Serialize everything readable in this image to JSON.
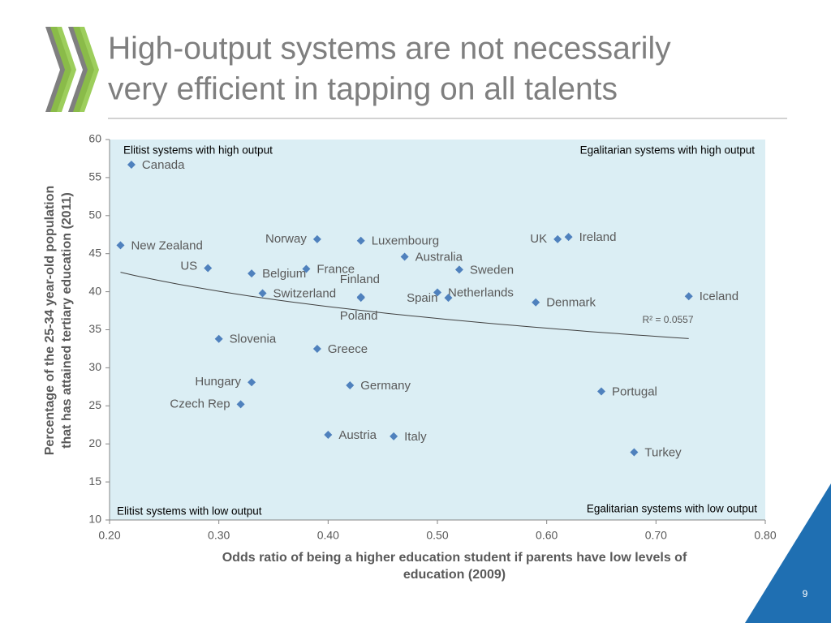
{
  "slide": {
    "title_lines": [
      "High-output systems are not necessarily",
      "very efficient in tapping on all talents"
    ],
    "page_number": "9"
  },
  "chart_data": {
    "type": "scatter",
    "x_label": "Odds ratio of being a higher education student if parents have low levels of education (2009)",
    "y_label_lines": [
      "Percentage of the 25-34 year-old population",
      "that has attained tertiary education (2011)"
    ],
    "annotations": [
      "Elitist systems with high output",
      "Egalitarian systems with high output",
      "Elitist systems with low output",
      "Egalitarian systems with low output"
    ],
    "trendline_label": "R² = 0.0557",
    "color": "#4f81bd",
    "trendline": "log",
    "labels": [
      "Canada",
      "New Zealand",
      "US",
      "Belgium",
      "Switzerland",
      "France",
      "Norway",
      "Luxembourg",
      "Finland",
      "Poland",
      "Australia",
      "Sweden",
      "Netherlands",
      "Spain",
      "Denmark",
      "UK",
      "Ireland",
      "Iceland",
      "Slovenia",
      "Greece",
      "Hungary",
      "Germany",
      "Czech Rep",
      "Portugal",
      "Austria",
      "Italy",
      "Turkey"
    ],
    "x": [
      0.22,
      0.21,
      0.29,
      0.33,
      0.34,
      0.38,
      0.39,
      0.43,
      0.43,
      0.43,
      0.47,
      0.52,
      0.5,
      0.51,
      0.59,
      0.61,
      0.62,
      0.73,
      0.3,
      0.39,
      0.33,
      0.42,
      0.32,
      0.65,
      0.4,
      0.46,
      0.68
    ],
    "y": [
      56.7,
      46.1,
      43.1,
      42.4,
      39.8,
      43.0,
      46.9,
      46.7,
      39.3,
      39.2,
      44.6,
      42.9,
      39.9,
      39.2,
      38.6,
      46.9,
      47.2,
      39.4,
      33.8,
      32.5,
      28.1,
      27.7,
      25.2,
      26.9,
      21.2,
      21.0,
      18.9
    ],
    "xlim": [
      0.2,
      0.8
    ],
    "xticks": [
      {
        "value": 0.2,
        "label": "0.20"
      },
      {
        "value": 0.3,
        "label": "0.30"
      },
      {
        "value": 0.4,
        "label": "0.40"
      },
      {
        "value": 0.5,
        "label": "0.50"
      },
      {
        "value": 0.6,
        "label": "0.60"
      },
      {
        "value": 0.7,
        "label": "0.70"
      },
      {
        "value": 0.8,
        "label": "0.80"
      }
    ],
    "ylim": [
      10,
      60
    ],
    "yticks": [
      10,
      15,
      20,
      25,
      30,
      35,
      40,
      45,
      50,
      55,
      60
    ]
  }
}
